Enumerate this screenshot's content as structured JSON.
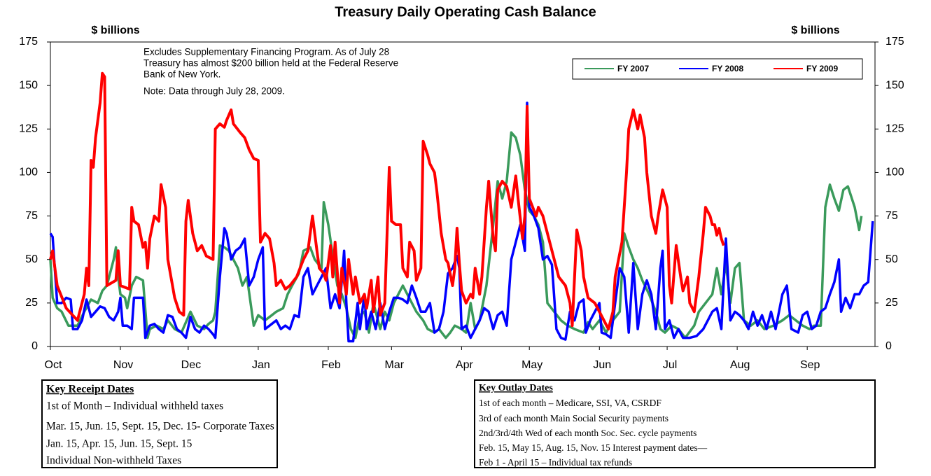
{
  "chart_data": {
    "type": "line",
    "title": "Treasury Daily Operating Cash Balance",
    "y_label": "$ billions",
    "y2_label": "$ billions",
    "annotation": [
      "Excludes Supplementary Financing Program. As of July 28",
      "Treasury has almost $200 billion held at the Federal Reserve",
      "Bank of New York."
    ],
    "note": "Note: Data through July 28, 2009.",
    "xlim": [
      0,
      365
    ],
    "xticks": [
      {
        "value": 0,
        "label": "Oct"
      },
      {
        "value": 31,
        "label": "Nov"
      },
      {
        "value": 61,
        "label": "Dec"
      },
      {
        "value": 92,
        "label": "Jan"
      },
      {
        "value": 123,
        "label": "Feb"
      },
      {
        "value": 151,
        "label": "Mar"
      },
      {
        "value": 182,
        "label": "Apr"
      },
      {
        "value": 212,
        "label": "May"
      },
      {
        "value": 243,
        "label": "Jun"
      },
      {
        "value": 273,
        "label": "Jul"
      },
      {
        "value": 304,
        "label": "Aug"
      },
      {
        "value": 335,
        "label": "Sep"
      }
    ],
    "ylim": [
      0,
      175
    ],
    "yticks": [
      0,
      25,
      50,
      75,
      100,
      125,
      150,
      175
    ],
    "y2lim": [
      0,
      175
    ],
    "y2ticks": [
      0,
      25,
      50,
      75,
      100,
      125,
      150,
      175
    ],
    "legend": "top-right",
    "series": [
      {
        "name": "FY 2007",
        "color": "#3a9a5b",
        "x": [
          0,
          1,
          3,
          5,
          8,
          12,
          15,
          18,
          21,
          23,
          25,
          28,
          29,
          30,
          31,
          33,
          34,
          36,
          38,
          41,
          43,
          44,
          47,
          50,
          52,
          55,
          58,
          62,
          65,
          68,
          70,
          72,
          73,
          75,
          77,
          79,
          81,
          83,
          85,
          87,
          90,
          92,
          95,
          98,
          100,
          103,
          105,
          107,
          110,
          112,
          115,
          117,
          120,
          121,
          123,
          125,
          127,
          129,
          131,
          133,
          135,
          137,
          139,
          141,
          143,
          146,
          148,
          150,
          152,
          154,
          156,
          158,
          160,
          162,
          165,
          167,
          170,
          172,
          175,
          177,
          179,
          182,
          184,
          186,
          188,
          190,
          193,
          196,
          198,
          200,
          202,
          204,
          206,
          208,
          210,
          212,
          214,
          216,
          218,
          220,
          223,
          226,
          229,
          232,
          236,
          238,
          240,
          243,
          246,
          249,
          252,
          254,
          256,
          258,
          260,
          262,
          265,
          268,
          270,
          272,
          275,
          278,
          281,
          285,
          287,
          290,
          293,
          295,
          297,
          299,
          301,
          303,
          305,
          307,
          310,
          313,
          316,
          320,
          324,
          327,
          330,
          333,
          336,
          338,
          341,
          343,
          345,
          347,
          349,
          351,
          353,
          356,
          358,
          359
        ],
        "values": [
          50,
          28,
          22,
          20,
          12,
          12,
          20,
          27,
          25,
          32,
          35,
          50,
          57,
          40,
          30,
          28,
          22,
          35,
          40,
          38,
          5,
          10,
          12,
          10,
          15,
          10,
          8,
          20,
          12,
          10,
          13,
          15,
          20,
          58,
          57,
          55,
          50,
          45,
          35,
          40,
          12,
          18,
          15,
          18,
          20,
          22,
          30,
          35,
          42,
          55,
          57,
          50,
          45,
          83,
          70,
          52,
          35,
          30,
          22,
          10,
          5,
          18,
          20,
          8,
          25,
          10,
          20,
          15,
          25,
          30,
          35,
          30,
          25,
          20,
          15,
          10,
          8,
          10,
          5,
          8,
          12,
          10,
          8,
          25,
          10,
          15,
          35,
          70,
          95,
          85,
          95,
          123,
          120,
          110,
          90,
          78,
          75,
          70,
          60,
          25,
          20,
          15,
          12,
          10,
          8,
          14,
          10,
          15,
          8,
          15,
          20,
          65,
          57,
          50,
          45,
          38,
          30,
          20,
          10,
          8,
          12,
          10,
          5,
          12,
          20,
          25,
          30,
          45,
          30,
          48,
          25,
          45,
          48,
          15,
          12,
          15,
          10,
          12,
          15,
          18,
          15,
          12,
          10,
          12,
          12,
          80,
          93,
          85,
          78,
          90,
          92,
          80,
          67,
          75
        ]
      },
      {
        "name": "FY 2008",
        "color": "#0000ff",
        "x": [
          0,
          1,
          3,
          5,
          7,
          9,
          10,
          12,
          14,
          16,
          18,
          20,
          22,
          24,
          26,
          28,
          30,
          31,
          32,
          34,
          36,
          37,
          39,
          41,
          42,
          44,
          46,
          48,
          50,
          52,
          54,
          56,
          58,
          60,
          62,
          64,
          66,
          68,
          70,
          72,
          73,
          75,
          77,
          78,
          80,
          82,
          84,
          86,
          88,
          90,
          92,
          94,
          95,
          97,
          100,
          102,
          104,
          106,
          108,
          110,
          112,
          114,
          116,
          118,
          120,
          122,
          124,
          126,
          128,
          130,
          131,
          132,
          134,
          136,
          137,
          139,
          140,
          142,
          144,
          146,
          148,
          150,
          152,
          154,
          156,
          158,
          160,
          162,
          164,
          166,
          168,
          170,
          172,
          174,
          176,
          178,
          180,
          181,
          182,
          184,
          186,
          188,
          190,
          192,
          194,
          196,
          198,
          200,
          202,
          204,
          206,
          208,
          210,
          211,
          212,
          214,
          216,
          218,
          220,
          222,
          224,
          226,
          228,
          230,
          232,
          234,
          236,
          237,
          239,
          241,
          243,
          244,
          246,
          248,
          250,
          252,
          254,
          256,
          258,
          260,
          262,
          264,
          266,
          268,
          270,
          271,
          272,
          274,
          276,
          278,
          280,
          283,
          286,
          289,
          291,
          293,
          295,
          297,
          299,
          301,
          303,
          305,
          307,
          309,
          311,
          313,
          315,
          317,
          319,
          321,
          324,
          326,
          328,
          331,
          333,
          335,
          337,
          339,
          341,
          343,
          345,
          347,
          349,
          350,
          352,
          354,
          356,
          358,
          360,
          362,
          364
        ],
        "values": [
          65,
          63,
          25,
          25,
          28,
          27,
          10,
          10,
          15,
          27,
          17,
          20,
          23,
          22,
          17,
          15,
          20,
          28,
          12,
          12,
          10,
          28,
          28,
          28,
          5,
          12,
          13,
          10,
          8,
          18,
          17,
          10,
          8,
          5,
          17,
          10,
          8,
          12,
          10,
          7,
          5,
          40,
          68,
          65,
          50,
          55,
          57,
          62,
          35,
          40,
          50,
          57,
          10,
          12,
          15,
          10,
          12,
          10,
          18,
          17,
          40,
          45,
          30,
          35,
          40,
          45,
          22,
          30,
          22,
          55,
          25,
          3,
          3,
          25,
          10,
          30,
          10,
          20,
          10,
          25,
          10,
          20,
          28,
          28,
          27,
          25,
          35,
          28,
          20,
          20,
          25,
          8,
          10,
          20,
          42,
          45,
          52,
          45,
          10,
          12,
          5,
          10,
          15,
          22,
          20,
          10,
          18,
          20,
          12,
          50,
          60,
          70,
          55,
          140,
          80,
          75,
          68,
          50,
          52,
          47,
          10,
          5,
          4,
          20,
          15,
          25,
          27,
          8,
          15,
          20,
          25,
          8,
          7,
          5,
          25,
          45,
          40,
          8,
          48,
          10,
          30,
          38,
          30,
          10,
          45,
          55,
          10,
          15,
          5,
          10,
          5,
          5,
          6,
          10,
          15,
          20,
          22,
          10,
          62,
          15,
          20,
          18,
          15,
          10,
          20,
          12,
          18,
          10,
          20,
          10,
          30,
          35,
          10,
          8,
          18,
          20,
          10,
          12,
          20,
          22,
          30,
          37,
          50,
          20,
          28,
          22,
          30,
          30,
          35,
          37,
          72
        ]
      },
      {
        "name": "FY 2009",
        "color": "#ff0000",
        "x": [
          0,
          1,
          3,
          7,
          12,
          15,
          16,
          17,
          18,
          19,
          20,
          22,
          23,
          24,
          25,
          29,
          30,
          31,
          35,
          36,
          37,
          39,
          41,
          42,
          43,
          44,
          46,
          48,
          49,
          51,
          52,
          55,
          57,
          59,
          60,
          61,
          63,
          65,
          67,
          69,
          72,
          73,
          75,
          77,
          78,
          80,
          81,
          84,
          86,
          88,
          90,
          92,
          93,
          95,
          97,
          99,
          100,
          102,
          104,
          106,
          109,
          112,
          114,
          116,
          118,
          119,
          121,
          122,
          124,
          125,
          126,
          128,
          129,
          131,
          132,
          134,
          135,
          137,
          139,
          140,
          142,
          143,
          145,
          146,
          148,
          150,
          151,
          153,
          155,
          156,
          158,
          159,
          161,
          162,
          164,
          165,
          167,
          168,
          170,
          171,
          173,
          175,
          176,
          178,
          179,
          180,
          181,
          182,
          184,
          186,
          187,
          188,
          190,
          191,
          193,
          194,
          196,
          197,
          198,
          200,
          202,
          204,
          206,
          207,
          209,
          210,
          211,
          212,
          215,
          216,
          218,
          219,
          222,
          225,
          228,
          230,
          231,
          233,
          235,
          236,
          238,
          241,
          243,
          245,
          247,
          249,
          250,
          253,
          255,
          256,
          258,
          260,
          261,
          263,
          264,
          266,
          268,
          269,
          271,
          273,
          274,
          275,
          277,
          279,
          280,
          282,
          283,
          285,
          287,
          289,
          290,
          292,
          293,
          294,
          295,
          296,
          297,
          298
        ],
        "values": [
          50,
          55,
          35,
          22,
          15,
          30,
          45,
          35,
          107,
          103,
          120,
          140,
          157,
          155,
          35,
          38,
          55,
          35,
          33,
          80,
          72,
          70,
          57,
          60,
          45,
          62,
          75,
          72,
          93,
          80,
          50,
          28,
          20,
          18,
          72,
          84,
          65,
          55,
          58,
          52,
          50,
          125,
          128,
          126,
          130,
          136,
          128,
          123,
          120,
          113,
          108,
          107,
          60,
          65,
          62,
          48,
          35,
          38,
          33,
          35,
          40,
          50,
          55,
          75,
          55,
          45,
          42,
          38,
          58,
          40,
          60,
          25,
          45,
          30,
          50,
          30,
          40,
          25,
          30,
          22,
          38,
          20,
          40,
          18,
          25,
          103,
          72,
          70,
          70,
          45,
          40,
          60,
          55,
          38,
          45,
          118,
          110,
          105,
          100,
          90,
          65,
          50,
          48,
          35,
          45,
          68,
          48,
          32,
          25,
          30,
          28,
          45,
          30,
          40,
          80,
          95,
          62,
          55,
          90,
          95,
          92,
          80,
          98,
          85,
          62,
          75,
          138,
          85,
          75,
          80,
          75,
          70,
          55,
          40,
          35,
          25,
          12,
          67,
          55,
          40,
          28,
          25,
          20,
          15,
          10,
          20,
          40,
          60,
          100,
          125,
          136,
          125,
          133,
          120,
          100,
          75,
          65,
          75,
          90,
          80,
          35,
          25,
          58,
          40,
          32,
          40,
          25,
          20,
          40,
          65,
          80,
          75,
          70,
          70,
          64,
          68,
          62,
          58
        ]
      }
    ]
  },
  "key_receipt_dates": {
    "title": "Key Receipt Dates",
    "lines": [
      "1st of Month – Individual withheld taxes",
      "Mar. 15, Jun. 15, Sept. 15, Dec. 15- Corporate Taxes",
      "Jan. 15, Apr. 15, Jun. 15, Sept. 15",
      "Individual Non-withheld Taxes"
    ]
  },
  "key_outlay_dates": {
    "title": "Key Outlay Dates",
    "lines": [
      "1st of each month – Medicare, SSI, VA, CSRDF",
      "3rd of each month Main Social Security payments",
      "2nd/3rd/4th Wed of each month Soc. Sec. cycle payments",
      "Feb. 15, May 15, Aug. 15, Nov. 15 Interest payment dates—",
      "Feb 1 - April 15 – Individual tax refunds"
    ]
  }
}
